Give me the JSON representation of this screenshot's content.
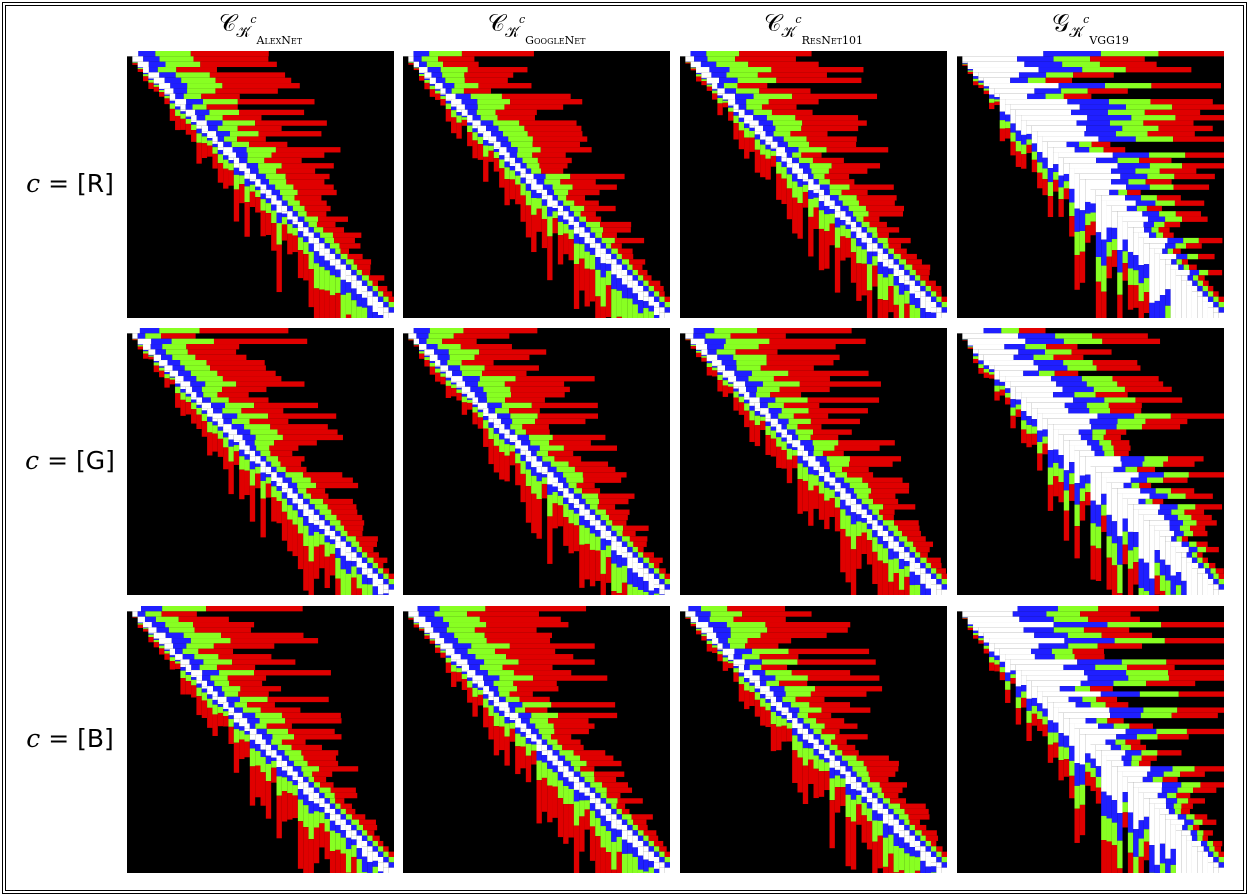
{
  "columns": [
    {
      "symbol": "𝒞",
      "kernel": "𝒦̆",
      "superscript": "c",
      "network": "AlexNet"
    },
    {
      "symbol": "𝒞",
      "kernel": "𝒦̆",
      "superscript": "c",
      "network": "GoogleNet"
    },
    {
      "symbol": "𝒞",
      "kernel": "𝒦̆",
      "superscript": "c",
      "network": "ResNet101"
    },
    {
      "symbol": "𝒢",
      "kernel": "𝒦̆",
      "superscript": "c",
      "network": "VGG19"
    }
  ],
  "rows": [
    {
      "variable": "c",
      "relation": "=",
      "value": "[R]"
    },
    {
      "variable": "c",
      "relation": "=",
      "value": "[G]"
    },
    {
      "variable": "c",
      "relation": "=",
      "value": "[B]"
    }
  ]
}
